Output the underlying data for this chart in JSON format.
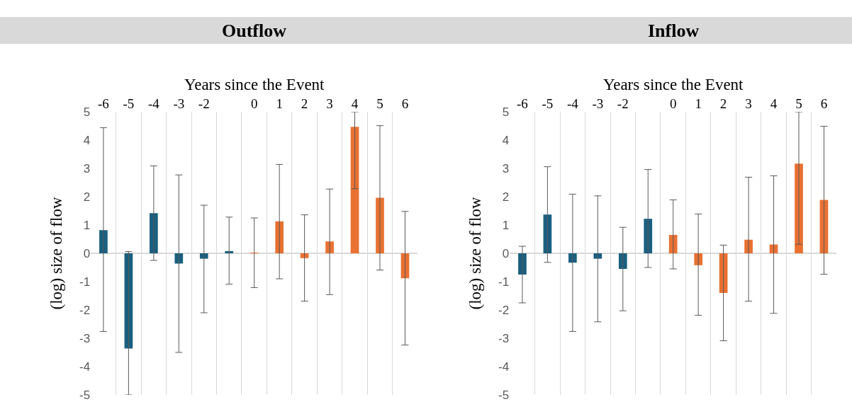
{
  "chart_data": [
    {
      "type": "bar",
      "title": "Outflow",
      "xlabel": "Years since the Event",
      "ylabel": "(log) size of flow",
      "categories": [
        "-6",
        "-5",
        "-4",
        "-3",
        "-2",
        null,
        "0",
        "1",
        "2",
        "3",
        "4",
        "5",
        "6"
      ],
      "values": [
        0.82,
        -3.36,
        1.42,
        -0.36,
        -0.19,
        0.08,
        0.02,
        1.13,
        -0.17,
        0.42,
        4.47,
        1.96,
        -0.88
      ],
      "colors": [
        "#1a5f7f",
        "#1a5f7f",
        "#1a5f7f",
        "#1a5f7f",
        "#1a5f7f",
        "#1a5f7f",
        "#e97132",
        "#e97132",
        "#e97132",
        "#e97132",
        "#e97132",
        "#e97132",
        "#e97132"
      ],
      "errors": [
        [
          -2.76,
          4.44
        ],
        [
          -5,
          0.06
        ],
        [
          -0.25,
          3.09
        ],
        [
          -3.5,
          2.77
        ],
        [
          -2.1,
          1.7
        ],
        [
          -1.09,
          1.28
        ],
        [
          -1.21,
          1.25
        ],
        [
          -0.9,
          3.14
        ],
        [
          -1.69,
          1.36
        ],
        [
          -1.46,
          2.27
        ],
        [
          2.28,
          5
        ],
        [
          -0.59,
          4.51
        ],
        [
          -3.24,
          1.48
        ]
      ],
      "ylim": [
        -5,
        5
      ],
      "yticks": [
        -5,
        -4,
        -3,
        -2,
        -1,
        0,
        1,
        2,
        3,
        4,
        5
      ],
      "grid": "x"
    },
    {
      "type": "bar",
      "title": "Inflow",
      "xlabel": "Years since the Event",
      "ylabel": "(log) size of flow",
      "categories": [
        "-6",
        "-5",
        "-4",
        "-3",
        "-2",
        null,
        "0",
        "1",
        "2",
        "3",
        "4",
        "5",
        "6"
      ],
      "values": [
        -0.75,
        1.37,
        -0.33,
        -0.19,
        -0.55,
        1.22,
        0.65,
        -0.42,
        -1.4,
        0.48,
        0.31,
        3.17,
        1.89
      ],
      "colors": [
        "#1a5f7f",
        "#1a5f7f",
        "#1a5f7f",
        "#1a5f7f",
        "#1a5f7f",
        "#1a5f7f",
        "#e97132",
        "#e97132",
        "#e97132",
        "#e97132",
        "#e97132",
        "#e97132",
        "#e97132"
      ],
      "errors": [
        [
          -1.75,
          0.25
        ],
        [
          -0.32,
          3.06
        ],
        [
          -2.76,
          2.09
        ],
        [
          -2.42,
          2.03
        ],
        [
          -2.03,
          0.92
        ],
        [
          -0.5,
          2.96
        ],
        [
          -0.55,
          1.89
        ],
        [
          -2.19,
          1.39
        ],
        [
          -3.09,
          0.29
        ],
        [
          -1.69,
          2.69
        ],
        [
          -2.12,
          2.74
        ],
        [
          0.32,
          5
        ],
        [
          -0.74,
          4.49
        ]
      ],
      "ylim": [
        -5,
        5
      ],
      "yticks": [
        -5,
        -4,
        -3,
        -2,
        -1,
        0,
        1,
        2,
        3,
        4,
        5
      ],
      "grid": "x"
    }
  ]
}
